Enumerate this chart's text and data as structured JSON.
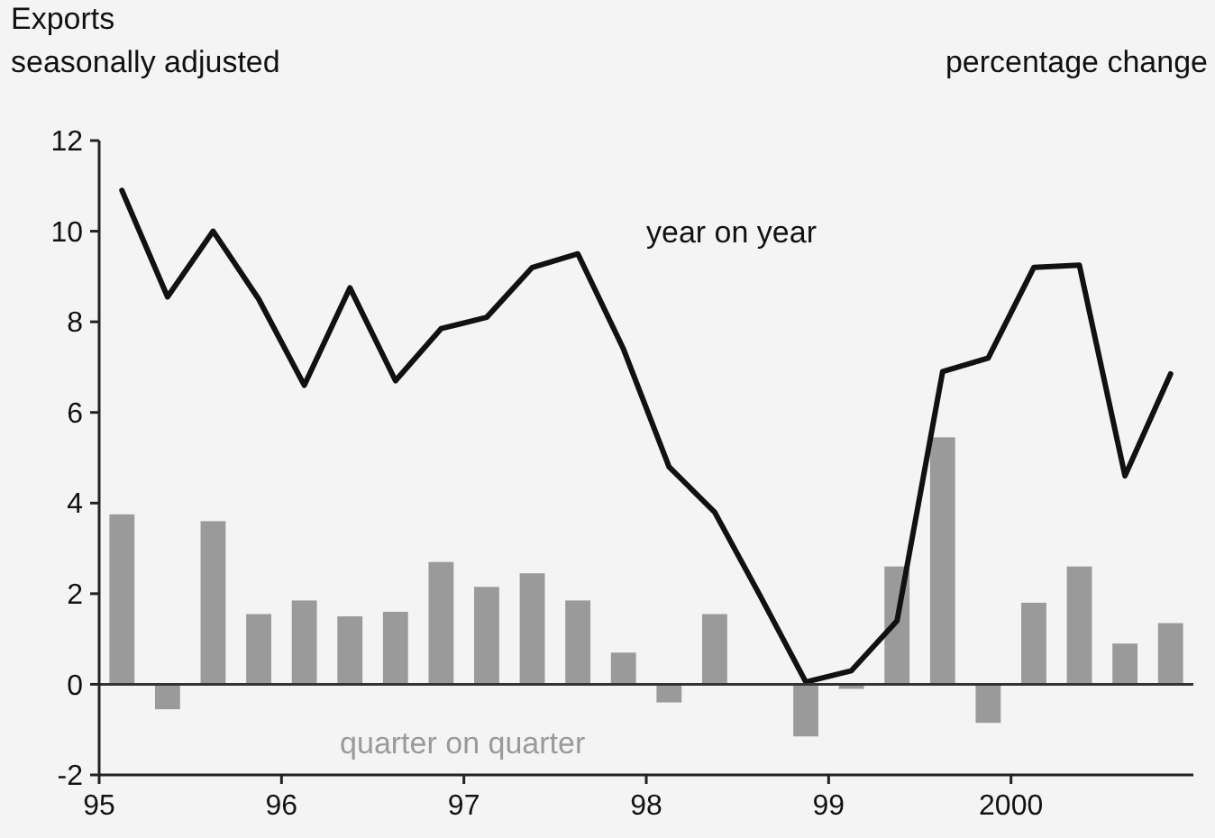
{
  "chart_data": {
    "type": "bar",
    "title": "Exports",
    "subtitle": "seasonally adjusted",
    "ylabel": "percentage change",
    "x": [
      1995.125,
      1995.375,
      1995.625,
      1995.875,
      1996.125,
      1996.375,
      1996.625,
      1996.875,
      1997.125,
      1997.375,
      1997.625,
      1997.875,
      1998.125,
      1998.375,
      1998.625,
      1998.875,
      1999.125,
      1999.375,
      1999.625,
      1999.875,
      2000.125,
      2000.375,
      2000.625,
      2000.875
    ],
    "series": [
      {
        "name": "quarter on quarter",
        "color": "#9a9a9a",
        "values": [
          3.75,
          -0.55,
          3.6,
          1.55,
          1.85,
          1.5,
          1.6,
          2.7,
          2.15,
          2.45,
          1.85,
          0.7,
          -0.4,
          1.55,
          0,
          -1.15,
          -0.1,
          2.6,
          5.45,
          -0.85,
          1.8,
          2.6,
          0.9,
          1.35
        ]
      },
      {
        "name": "year on year",
        "type": "line",
        "color": "#111111",
        "values": [
          10.9,
          8.55,
          10.0,
          8.5,
          6.6,
          8.75,
          6.7,
          7.85,
          8.1,
          9.2,
          9.5,
          7.4,
          4.8,
          3.8,
          1.95,
          0.05,
          0.3,
          1.4,
          6.9,
          7.2,
          9.2,
          9.25,
          4.6,
          6.85
        ]
      }
    ],
    "xlim": [
      1995,
      2001
    ],
    "xticks": [
      {
        "value": 1995,
        "label": "95"
      },
      {
        "value": 1996,
        "label": "96"
      },
      {
        "value": 1997,
        "label": "97"
      },
      {
        "value": 1998,
        "label": "98"
      },
      {
        "value": 1999,
        "label": "99"
      },
      2000
    ],
    "ylim": [
      -2,
      12
    ],
    "yticks": [
      -2,
      0,
      2,
      4,
      6,
      8,
      10,
      12
    ],
    "ref_lines": [
      {
        "axis": "y",
        "value": 0,
        "color": "#333333"
      }
    ],
    "grid": false,
    "legend": false,
    "marker": "none",
    "line_style": "solid"
  }
}
